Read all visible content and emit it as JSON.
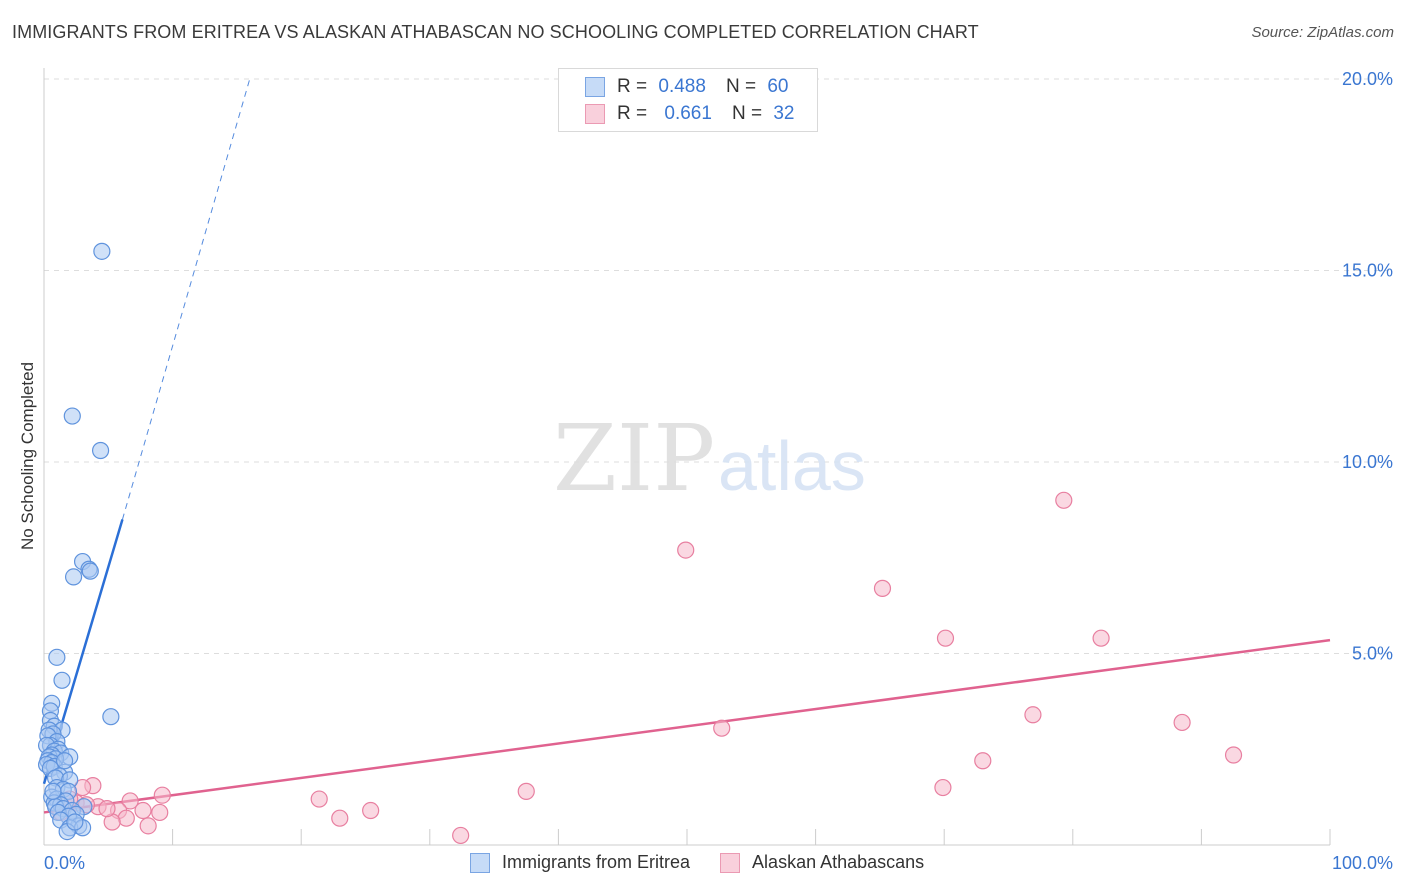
{
  "header": {
    "title": "IMMIGRANTS FROM ERITREA VS ALASKAN ATHABASCAN NO SCHOOLING COMPLETED CORRELATION CHART",
    "source": "Source: ZipAtlas.com"
  },
  "watermark": {
    "zip": "ZIP",
    "atlas": "atlas"
  },
  "legend_top": {
    "rows": [
      {
        "r_key": "R =",
        "r_val": "0.488",
        "n_key": "N =",
        "n_val": "60"
      },
      {
        "r_key": "R =",
        "r_val": "0.661",
        "n_key": "N =",
        "n_val": "32"
      }
    ]
  },
  "colors": {
    "blue_fill": "#a9c8f3",
    "blue_stroke": "#5f93dd",
    "blue_line": "#2b6fd6",
    "pink_fill": "#f5b8ca",
    "pink_stroke": "#e87fa0",
    "pink_line": "#e0628f",
    "grid": "#dddddd",
    "tick_label": "#3a76d1"
  },
  "chart_data": {
    "type": "scatter",
    "title": "IMMIGRANTS FROM ERITREA VS ALASKAN ATHABASCAN NO SCHOOLING COMPLETED CORRELATION CHART",
    "xlabel": "",
    "ylabel": "No Schooling Completed",
    "xlim": [
      0,
      100
    ],
    "ylim": [
      0,
      20
    ],
    "x_tick_labels": [
      "0.0%",
      "100.0%"
    ],
    "y_ticks": [
      {
        "value": 5,
        "label": "5.0%"
      },
      {
        "value": 10,
        "label": "10.0%"
      },
      {
        "value": 15,
        "label": "15.0%"
      },
      {
        "value": 20,
        "label": "20.0%"
      }
    ],
    "grid": "horizontal dashed",
    "legend_position": "bottom",
    "series": [
      {
        "name": "Immigrants from Eritrea",
        "color": "#a9c8f3",
        "trend": {
          "x0": 0.0,
          "y0": 1.6,
          "x1": 6.1,
          "y1": 8.5,
          "dash_to_x": 16.0,
          "dash_to_y": 20.0
        },
        "points": [
          [
            4.5,
            15.5
          ],
          [
            2.2,
            11.2
          ],
          [
            4.4,
            10.3
          ],
          [
            3.0,
            7.4
          ],
          [
            3.5,
            7.2
          ],
          [
            3.6,
            7.15
          ],
          [
            2.3,
            7.0
          ],
          [
            1.0,
            4.9
          ],
          [
            1.4,
            4.3
          ],
          [
            0.6,
            3.7
          ],
          [
            0.5,
            3.5
          ],
          [
            5.2,
            3.35
          ],
          [
            0.5,
            3.25
          ],
          [
            0.8,
            3.1
          ],
          [
            1.4,
            3.0
          ],
          [
            0.4,
            3.0
          ],
          [
            0.7,
            2.9
          ],
          [
            0.3,
            2.85
          ],
          [
            1.0,
            2.7
          ],
          [
            0.5,
            2.6
          ],
          [
            0.2,
            2.6
          ],
          [
            1.1,
            2.5
          ],
          [
            0.8,
            2.45
          ],
          [
            1.3,
            2.4
          ],
          [
            0.6,
            2.35
          ],
          [
            2.0,
            2.3
          ],
          [
            0.4,
            2.3
          ],
          [
            0.9,
            2.25
          ],
          [
            0.3,
            2.2
          ],
          [
            0.6,
            2.15
          ],
          [
            0.2,
            2.1
          ],
          [
            0.8,
            2.05
          ],
          [
            0.5,
            2.0
          ],
          [
            1.6,
            1.9
          ],
          [
            1.2,
            1.8
          ],
          [
            0.9,
            1.75
          ],
          [
            2.0,
            1.7
          ],
          [
            1.0,
            1.5
          ],
          [
            1.5,
            1.45
          ],
          [
            1.9,
            1.4
          ],
          [
            0.6,
            1.25
          ],
          [
            1.0,
            1.2
          ],
          [
            1.7,
            1.15
          ],
          [
            0.8,
            1.1
          ],
          [
            1.3,
            1.05
          ],
          [
            3.1,
            1.0
          ],
          [
            0.9,
            1.0
          ],
          [
            1.5,
            0.95
          ],
          [
            2.2,
            0.9
          ],
          [
            1.1,
            0.85
          ],
          [
            2.5,
            0.8
          ],
          [
            1.9,
            0.75
          ],
          [
            1.3,
            0.65
          ],
          [
            2.7,
            0.5
          ],
          [
            2.0,
            0.45
          ],
          [
            3.0,
            0.45
          ],
          [
            1.8,
            0.35
          ],
          [
            2.4,
            0.6
          ],
          [
            0.7,
            1.4
          ],
          [
            1.6,
            2.2
          ]
        ]
      },
      {
        "name": "Alaskan Athabascans",
        "color": "#f5b8ca",
        "trend": {
          "x0": 0.0,
          "y0": 0.85,
          "x1": 100.0,
          "y1": 5.35
        },
        "points": [
          [
            79.3,
            9.0
          ],
          [
            49.9,
            7.7
          ],
          [
            65.2,
            6.7
          ],
          [
            70.1,
            5.4
          ],
          [
            82.2,
            5.4
          ],
          [
            76.9,
            3.4
          ],
          [
            88.5,
            3.2
          ],
          [
            52.7,
            3.05
          ],
          [
            92.5,
            2.35
          ],
          [
            73.0,
            2.2
          ],
          [
            69.9,
            1.5
          ],
          [
            37.5,
            1.4
          ],
          [
            3.8,
            1.55
          ],
          [
            3.0,
            1.5
          ],
          [
            9.2,
            1.3
          ],
          [
            21.4,
            1.2
          ],
          [
            6.7,
            1.15
          ],
          [
            2.5,
            1.1
          ],
          [
            4.2,
            1.0
          ],
          [
            3.3,
            1.05
          ],
          [
            5.8,
            0.9
          ],
          [
            1.3,
            0.85
          ],
          [
            7.7,
            0.9
          ],
          [
            9.0,
            0.85
          ],
          [
            25.4,
            0.9
          ],
          [
            23.0,
            0.7
          ],
          [
            6.4,
            0.7
          ],
          [
            5.3,
            0.6
          ],
          [
            8.1,
            0.5
          ],
          [
            32.4,
            0.25
          ],
          [
            2.0,
            1.2
          ],
          [
            4.9,
            0.95
          ]
        ]
      }
    ]
  }
}
